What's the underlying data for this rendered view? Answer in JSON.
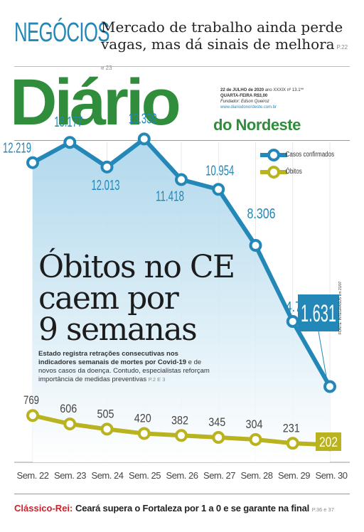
{
  "teaser": {
    "section": "NEGÓCIOS",
    "headline": "Mercado de trabalho ainda perde vagas, mas dá sinais de melhora",
    "pages": "P.22 e 23"
  },
  "masthead": {
    "logo": "Diário",
    "logo_sub": "do Nordeste",
    "date": "22 de JULHO de 2020",
    "edition_no": "ano XXXIX nº 13.1**",
    "weekday": "QUARTA-FEIRA",
    "price": "R$3,00",
    "founder": "Fundador: Edson Queiroz",
    "url": "www.diariodonordeste.com.br"
  },
  "story": {
    "headline_lines": [
      "Óbitos no CE",
      "caem por",
      "9 semanas"
    ],
    "subhead_bold": "Estado registra retrações consecutivas nos indicadores semanais de mortes por Covid-19",
    "subhead_rest": "e de novos casos da doença. Contudo, especialistas reforçam importância de medidas preventivas",
    "subhead_ref": "P.2 E 3",
    "credit": "FONTE: INTEGRASUS em 21/07"
  },
  "chart_data": {
    "type": "line",
    "categories": [
      "Sem. 22",
      "Sem. 23",
      "Sem. 24",
      "Sem. 25",
      "Sem. 26",
      "Sem. 27",
      "Sem. 28",
      "Sem. 29",
      "Sem. 30"
    ],
    "series": [
      {
        "name": "Casos confirmados",
        "values": [
          "12.219",
          "13.177",
          "12.013",
          "13.339",
          "11.418",
          "10.954",
          "8.306",
          "4.709",
          "1.631"
        ],
        "numeric": [
          12219,
          13177,
          12013,
          13339,
          11418,
          10954,
          8306,
          4709,
          1631
        ],
        "color": "#2388b8"
      },
      {
        "name": "Óbitos",
        "values": [
          "769",
          "606",
          "505",
          "420",
          "382",
          "345",
          "304",
          "231",
          "202"
        ],
        "numeric": [
          769,
          606,
          505,
          420,
          382,
          345,
          304,
          231,
          202
        ],
        "color": "#b8b31e"
      }
    ],
    "highlight_last": true
  },
  "footer": {
    "kicker": "Clássico-Rei:",
    "title": "Ceará supera o Fortaleza por 1 a 0 e se garante na final",
    "pages": "P.36 e 37"
  }
}
